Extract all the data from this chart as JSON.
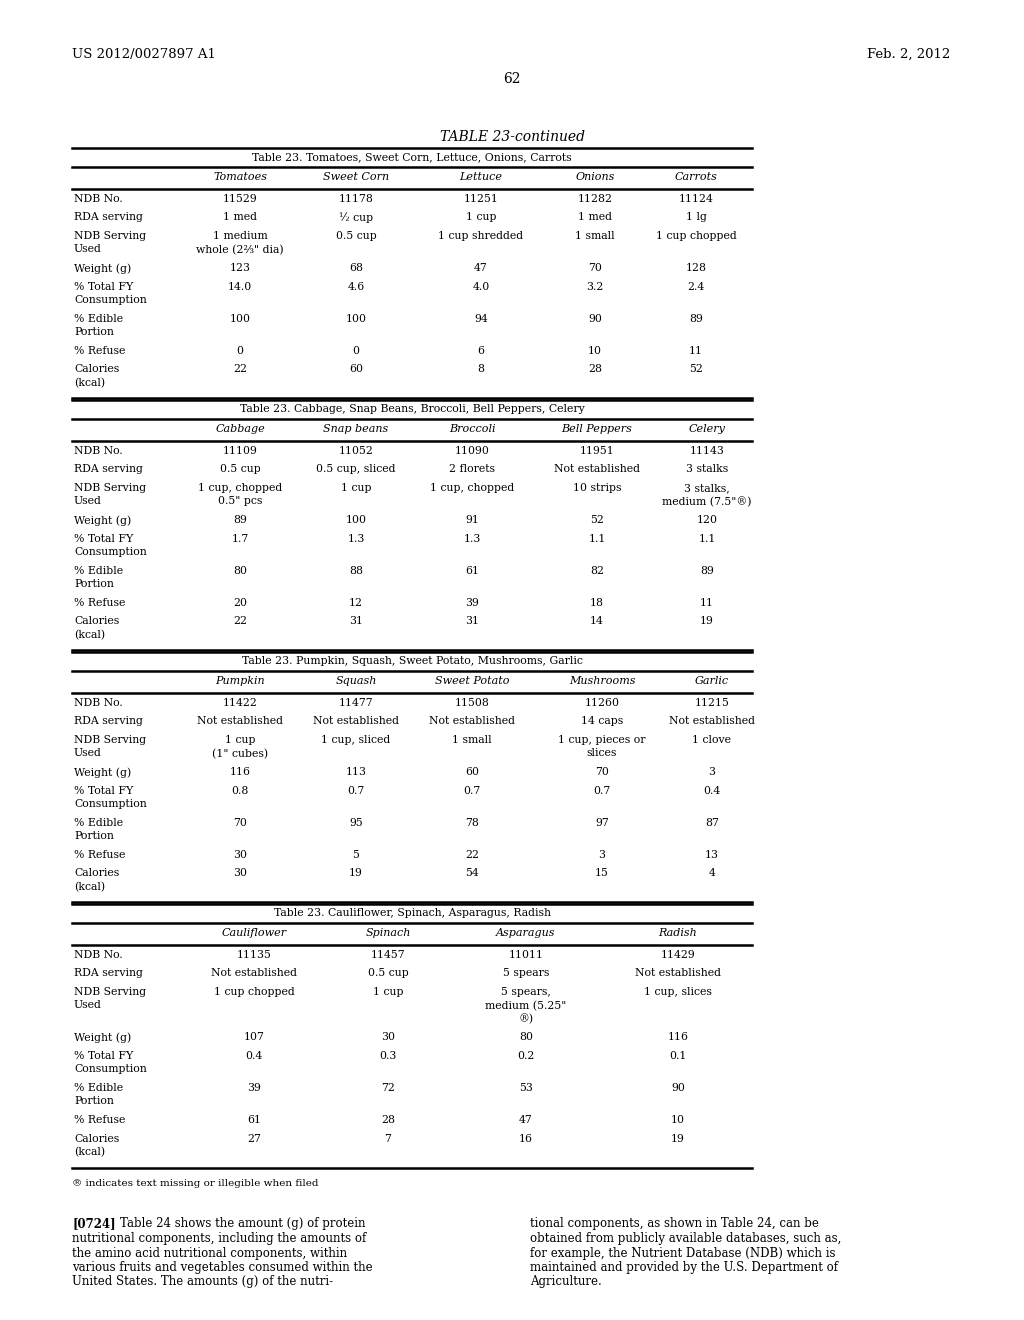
{
  "page_header_left": "US 2012/0027897 A1",
  "page_header_right": "Feb. 2, 2012",
  "page_number": "62",
  "main_title": "TABLE 23-continued",
  "table1_subtitle": "Table 23. Tomatoes, Sweet Corn, Lettuce, Onions, Carrots",
  "table1_columns": [
    "",
    "Tomatoes",
    "Sweet Corn",
    "Lettuce",
    "Onions",
    "Carrots"
  ],
  "table1_col_widths": [
    108,
    120,
    112,
    138,
    90,
    112
  ],
  "table1_rows": [
    [
      "NDB No.",
      "11529",
      "11178",
      "11251",
      "11282",
      "11124"
    ],
    [
      "RDA serving",
      "1 med",
      "½ cup",
      "1 cup",
      "1 med",
      "1 lg"
    ],
    [
      "NDB Serving\nUsed",
      "1 medium\nwhole (2⅔\" dia)",
      "0.5 cup",
      "1 cup shredded",
      "1 small",
      "1 cup chopped"
    ],
    [
      "Weight (g)",
      "123",
      "68",
      "47",
      "70",
      "128"
    ],
    [
      "% Total FY\nConsumption",
      "14.0",
      "4.6",
      "4.0",
      "3.2",
      "2.4"
    ],
    [
      "% Edible\nPortion",
      "100",
      "100",
      "94",
      "90",
      "89"
    ],
    [
      "% Refuse",
      "0",
      "0",
      "6",
      "10",
      "11"
    ],
    [
      "Calories\n(kcal)",
      "22",
      "60",
      "8",
      "28",
      "52"
    ]
  ],
  "table2_subtitle": "Table 23. Cabbage, Snap Beans, Broccoli, Bell Peppers, Celery",
  "table2_columns": [
    "",
    "Cabbage",
    "Snap beans",
    "Broccoli",
    "Bell Peppers",
    "Celery"
  ],
  "table2_col_widths": [
    108,
    120,
    112,
    120,
    130,
    90
  ],
  "table2_rows": [
    [
      "NDB No.",
      "11109",
      "11052",
      "11090",
      "11951",
      "11143"
    ],
    [
      "RDA serving",
      "0.5 cup",
      "0.5 cup, sliced",
      "2 florets",
      "Not established",
      "3 stalks"
    ],
    [
      "NDB Serving\nUsed",
      "1 cup, chopped\n0.5\" pcs",
      "1 cup",
      "1 cup, chopped",
      "10 strips",
      "3 stalks,\nmedium (7.5\"®)"
    ],
    [
      "Weight (g)",
      "89",
      "100",
      "91",
      "52",
      "120"
    ],
    [
      "% Total FY\nConsumption",
      "1.7",
      "1.3",
      "1.3",
      "1.1",
      "1.1"
    ],
    [
      "% Edible\nPortion",
      "80",
      "88",
      "61",
      "82",
      "89"
    ],
    [
      "% Refuse",
      "20",
      "12",
      "39",
      "18",
      "11"
    ],
    [
      "Calories\n(kcal)",
      "22",
      "31",
      "31",
      "14",
      "19"
    ]
  ],
  "table3_subtitle": "Table 23. Pumpkin, Squash, Sweet Potato, Mushrooms, Garlic",
  "table3_columns": [
    "",
    "Pumpkin",
    "Squash",
    "Sweet Potato",
    "Mushrooms",
    "Garlic"
  ],
  "table3_col_widths": [
    108,
    120,
    112,
    120,
    140,
    80
  ],
  "table3_rows": [
    [
      "NDB No.",
      "11422",
      "11477",
      "11508",
      "11260",
      "11215"
    ],
    [
      "RDA serving",
      "Not established",
      "Not established",
      "Not established",
      "14 caps",
      "Not established"
    ],
    [
      "NDB Serving\nUsed",
      "1 cup\n(1\" cubes)",
      "1 cup, sliced",
      "1 small",
      "1 cup, pieces or\nslices",
      "1 clove"
    ],
    [
      "Weight (g)",
      "116",
      "113",
      "60",
      "70",
      "3"
    ],
    [
      "% Total FY\nConsumption",
      "0.8",
      "0.7",
      "0.7",
      "0.7",
      "0.4"
    ],
    [
      "% Edible\nPortion",
      "70",
      "95",
      "78",
      "97",
      "87"
    ],
    [
      "% Refuse",
      "30",
      "5",
      "22",
      "3",
      "13"
    ],
    [
      "Calories\n(kcal)",
      "30",
      "19",
      "54",
      "15",
      "4"
    ]
  ],
  "table4_subtitle": "Table 23. Cauliflower, Spinach, Asparagus, Radish",
  "table4_columns": [
    "",
    "Cauliflower",
    "Spinach",
    "Asparagus",
    "Radish"
  ],
  "table4_col_widths": [
    108,
    148,
    120,
    156,
    148
  ],
  "table4_rows": [
    [
      "NDB No.",
      "11135",
      "11457",
      "11011",
      "11429"
    ],
    [
      "RDA serving",
      "Not established",
      "0.5 cup",
      "5 spears",
      "Not established"
    ],
    [
      "NDB Serving\nUsed",
      "1 cup chopped",
      "1 cup",
      "5 spears,\nmedium (5.25\"\n®)",
      "1 cup, slices"
    ],
    [
      "Weight (g)",
      "107",
      "30",
      "80",
      "116"
    ],
    [
      "% Total FY\nConsumption",
      "0.4",
      "0.3",
      "0.2",
      "0.1"
    ],
    [
      "% Edible\nPortion",
      "39",
      "72",
      "53",
      "90"
    ],
    [
      "% Refuse",
      "61",
      "28",
      "47",
      "10"
    ],
    [
      "Calories\n(kcal)",
      "27",
      "7",
      "16",
      "19"
    ]
  ],
  "footnote": "® indicates text missing or illegible when filed",
  "paragraph_number": "[0724]",
  "paragraph_left": "Table 24 shows the amount (g) of protein nutritional components, including the amounts of the amino acid nutritional components, within various fruits and vegetables consumed within the United States. The amounts (g) of the nutri-",
  "paragraph_right": "tional components, as shown in Table 24, can be obtained from publicly available databases, such as, for example, the Nutrient Database (NDB) which is maintained and provided by the U.S. Department of Agriculture."
}
